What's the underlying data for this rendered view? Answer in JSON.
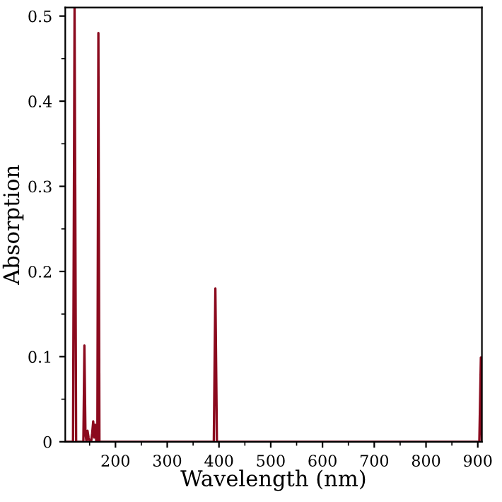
{
  "chart_data": {
    "type": "line",
    "xlabel": "Wavelength (nm)",
    "ylabel": "Absorption",
    "series": [
      {
        "color": "#8b0a1e",
        "x": [
          103,
          115,
          118,
          121,
          124,
          127,
          136,
          138,
          140,
          142,
          144,
          146,
          148,
          150,
          153,
          155,
          157,
          159,
          161,
          163,
          165,
          167,
          169,
          172,
          175,
          385,
          390,
          393,
          396,
          400,
          898,
          903,
          906,
          908
        ],
        "values": [
          0,
          0,
          0,
          0.51,
          0,
          0,
          0,
          0,
          0.113,
          0.01,
          0,
          0.013,
          0.005,
          0,
          0,
          0.01,
          0.024,
          0.005,
          0.02,
          0,
          0,
          0.48,
          0,
          0,
          0,
          0,
          0,
          0.18,
          0,
          0,
          0,
          0,
          0.099,
          0
        ]
      }
    ],
    "xlim": [
      103,
      908
    ],
    "ylim": [
      0,
      0.51
    ],
    "xticks": [
      200,
      300,
      400,
      500,
      600,
      700,
      800,
      900
    ],
    "yticks": [
      0,
      0.1,
      0.2,
      0.3,
      0.4,
      0.5
    ],
    "grid": false,
    "legend": false,
    "marker": "none",
    "line_style": "solid"
  }
}
